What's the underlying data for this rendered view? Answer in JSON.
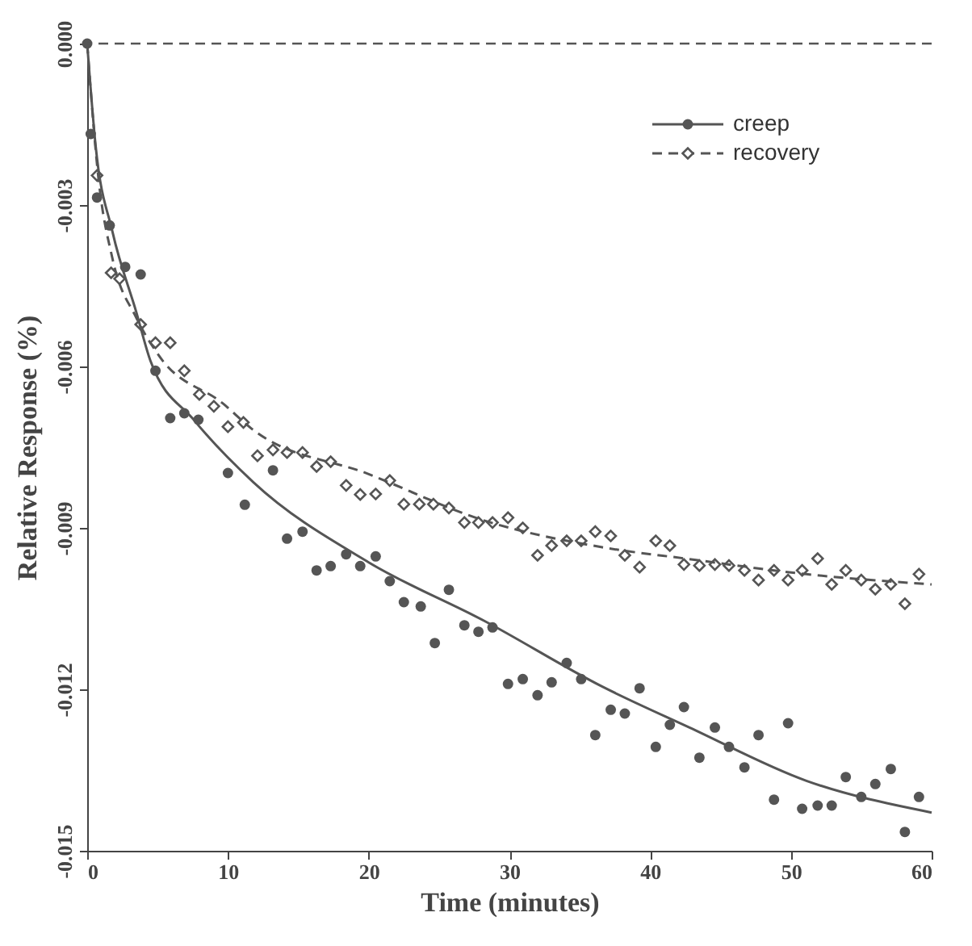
{
  "chart_data": {
    "type": "scatter",
    "xlabel": "Time (minutes)",
    "ylabel": "Relative Response (%)",
    "xlim": [
      0,
      60
    ],
    "xticks": [
      0,
      10,
      20,
      30,
      40,
      50,
      60
    ],
    "ylim": [
      -0.015,
      0
    ],
    "yticks": [
      {
        "value": 0,
        "label": "0.000"
      },
      {
        "value": -0.003,
        "label": "-0.003"
      },
      {
        "value": -0.006,
        "label": "-0.006"
      },
      {
        "value": -0.009,
        "label": "-0.009"
      },
      {
        "value": -0.012,
        "label": "-0.012"
      },
      {
        "value": -0.015,
        "label": "-0.015"
      }
    ],
    "grid": false,
    "legend": "top right",
    "ref_lines": [
      {
        "axis": "y",
        "value": 0,
        "line_style": "dashed",
        "color": "#555555"
      }
    ],
    "series": [
      {
        "name": "creep",
        "marker": "circle",
        "color": "#555555",
        "x": [
          0,
          0.25,
          0.7,
          1.6,
          2.7,
          3.8,
          4.85,
          5.9,
          6.9,
          7.9,
          10.0,
          11.2,
          13.2,
          14.2,
          15.3,
          16.3,
          17.3,
          18.4,
          19.4,
          20.5,
          21.5,
          22.5,
          23.7,
          24.7,
          25.7,
          26.8,
          27.8,
          28.8,
          29.9,
          30.95,
          32.0,
          33.0,
          34.07,
          35.1,
          36.1,
          37.2,
          38.2,
          39.25,
          40.4,
          41.4,
          42.4,
          43.5,
          44.6,
          45.6,
          46.7,
          47.7,
          48.8,
          49.8,
          50.8,
          51.9,
          52.9,
          53.9,
          55.0,
          56.0,
          57.1,
          58.1,
          59.1
        ],
        "values": [
          0,
          -0.00168,
          -0.00286,
          -0.00338,
          -0.00415,
          -0.00429,
          -0.00608,
          -0.00696,
          -0.00687,
          -0.00699,
          -0.00798,
          -0.00857,
          -0.00793,
          -0.0092,
          -0.00907,
          -0.00979,
          -0.00971,
          -0.00949,
          -0.00971,
          -0.00953,
          -0.00999,
          -0.01038,
          -0.01046,
          -0.01114,
          -0.01015,
          -0.01081,
          -0.01093,
          -0.01085,
          -0.0119,
          -0.01181,
          -0.01211,
          -0.01187,
          -0.01151,
          -0.01181,
          -0.01285,
          -0.01238,
          -0.01245,
          -0.01198,
          -0.01307,
          -0.01266,
          -0.01233,
          -0.01327,
          -0.01271,
          -0.01307,
          -0.01345,
          -0.01285,
          -0.01405,
          -0.01263,
          -0.01422,
          -0.01416,
          -0.01416,
          -0.01363,
          -0.014,
          -0.01376,
          -0.01348,
          -0.01465,
          -0.014
        ]
      },
      {
        "name": "recovery",
        "marker": "diamond",
        "color": "#555555",
        "x": [
          0.7,
          1.7,
          2.3,
          3.8,
          4.85,
          5.9,
          6.9,
          7.97,
          9.0,
          10.0,
          11.1,
          12.1,
          13.2,
          14.2,
          15.3,
          16.3,
          17.3,
          18.4,
          19.4,
          20.5,
          21.5,
          22.5,
          23.6,
          24.6,
          25.7,
          26.8,
          27.8,
          28.8,
          29.9,
          30.95,
          32.0,
          33.0,
          34.07,
          35.1,
          36.1,
          37.2,
          38.2,
          39.25,
          40.4,
          41.4,
          42.4,
          43.5,
          44.6,
          45.6,
          46.7,
          47.7,
          48.8,
          49.8,
          50.8,
          51.9,
          52.9,
          53.9,
          55.0,
          56.0,
          57.1,
          58.1,
          59.1
        ],
        "values": [
          -0.00245,
          -0.00426,
          -0.00437,
          -0.00522,
          -0.00556,
          -0.00556,
          -0.00608,
          -0.00652,
          -0.00674,
          -0.00712,
          -0.00704,
          -0.00766,
          -0.00755,
          -0.0076,
          -0.0076,
          -0.00786,
          -0.00777,
          -0.00821,
          -0.00838,
          -0.00837,
          -0.00812,
          -0.00856,
          -0.00856,
          -0.00856,
          -0.00863,
          -0.0089,
          -0.0089,
          -0.0089,
          -0.00881,
          -0.009,
          -0.00951,
          -0.00933,
          -0.00924,
          -0.00924,
          -0.00907,
          -0.00915,
          -0.00951,
          -0.00973,
          -0.00924,
          -0.00933,
          -0.00968,
          -0.0097,
          -0.00968,
          -0.0097,
          -0.00979,
          -0.00997,
          -0.00979,
          -0.00997,
          -0.00979,
          -0.00957,
          -0.01005,
          -0.00979,
          -0.00997,
          -0.01014,
          -0.01005,
          -0.01041,
          -0.00986
        ]
      },
      {
        "type": "line",
        "line_style": "solid",
        "color": "#555555",
        "x": [
          0,
          0.6,
          1.8,
          3.5,
          4.5,
          7.6,
          11.8,
          20,
          28.3,
          36.6,
          42.8,
          51.1,
          60
        ],
        "values": [
          0,
          -0.0019,
          -0.0035,
          -0.005,
          -0.0059,
          -0.007,
          -0.00815,
          -0.00964,
          -0.01074,
          -0.01195,
          -0.01271,
          -0.0137,
          -0.01429
        ]
      },
      {
        "type": "line",
        "line_style": "dashed",
        "color": "#555555",
        "x": [
          0,
          0.8,
          1.8,
          3.5,
          5.1,
          9.7,
          11.7,
          20,
          28.3,
          36.6,
          42.8,
          51.1,
          60
        ],
        "values": [
          0,
          -0.0025,
          -0.004,
          -0.0051,
          -0.0058,
          -0.0067,
          -0.00716,
          -0.008,
          -0.00887,
          -0.00936,
          -0.00958,
          -0.00986,
          -0.01005
        ]
      }
    ]
  }
}
